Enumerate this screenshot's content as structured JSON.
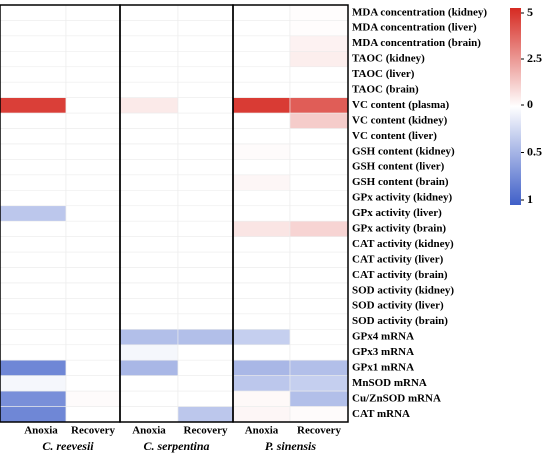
{
  "chart_data": {
    "type": "heatmap",
    "rows": [
      "MDA concentration (kidney)",
      "MDA concentration (liver)",
      "MDA concentration (brain)",
      "TAOC (kidney)",
      "TAOC (liver)",
      "TAOC (brain)",
      "VC content (plasma)",
      "VC content (kidney)",
      "VC content (liver)",
      "GSH content (kidney)",
      "GSH content (liver)",
      "GSH content (brain)",
      "GPx activity (kidney)",
      "GPx activity (liver)",
      "GPx activity (brain)",
      "CAT activity (kidney)",
      "CAT activity (liver)",
      "CAT activity (brain)",
      "SOD activity (kidney)",
      "SOD activity (liver)",
      "SOD activity (brain)",
      "GPx4 mRNA",
      "GPx3 mRNA",
      "GPx1 mRNA",
      "MnSOD mRNA",
      "Cu/ZnSOD mRNA",
      "CAT mRNA"
    ],
    "columns": [
      "Anoxia",
      "Recovery",
      "Anoxia",
      "Recovery",
      "Anoxia",
      "Recovery"
    ],
    "groups": [
      "C. reevesii",
      "C. serpentina",
      "P. sinensis"
    ],
    "values": [
      [
        0,
        0,
        0,
        0,
        0,
        0.05
      ],
      [
        0,
        0,
        0,
        0,
        0,
        0.05
      ],
      [
        0,
        0,
        0,
        0,
        0,
        0.3
      ],
      [
        0,
        0,
        0,
        0,
        0,
        0.4
      ],
      [
        0,
        0,
        0,
        0,
        0,
        0
      ],
      [
        0,
        0,
        0,
        0,
        0,
        0
      ],
      [
        4.5,
        0,
        0.5,
        0,
        4.6,
        3.8
      ],
      [
        0,
        0,
        0,
        0,
        0,
        1.2
      ],
      [
        0,
        0,
        0,
        0,
        0,
        0
      ],
      [
        0,
        0,
        0,
        0,
        0.1,
        0
      ],
      [
        0,
        0,
        0,
        0,
        0,
        0
      ],
      [
        0,
        0,
        0,
        0,
        0.2,
        0
      ],
      [
        0,
        0,
        0,
        0,
        0,
        0
      ],
      [
        -0.35,
        0,
        0,
        0,
        0,
        0
      ],
      [
        0,
        0,
        0,
        0,
        0.6,
        1.0
      ],
      [
        0,
        0,
        0,
        0,
        0,
        0
      ],
      [
        0,
        0,
        0,
        0,
        0,
        0
      ],
      [
        0,
        0,
        0,
        0,
        0,
        0
      ],
      [
        0,
        0,
        0,
        0,
        0,
        0
      ],
      [
        0,
        0,
        0,
        0,
        0,
        0
      ],
      [
        0,
        0,
        0,
        0,
        0,
        0
      ],
      [
        0,
        0,
        -0.4,
        -0.4,
        -0.3,
        0
      ],
      [
        0,
        0,
        -0.05,
        0,
        0,
        0
      ],
      [
        -0.75,
        0,
        -0.45,
        0,
        -0.45,
        -0.4
      ],
      [
        -0.05,
        0,
        0,
        0,
        -0.35,
        -0.3
      ],
      [
        -0.7,
        0.1,
        0,
        0,
        0.15,
        -0.4
      ],
      [
        -0.75,
        0,
        0,
        -0.35,
        0.2,
        0.1
      ]
    ],
    "zlim": [
      -1,
      5
    ],
    "zticks": [
      5,
      2.5,
      0,
      {
        "value": -0.5,
        "label": "0.5"
      },
      {
        "value": -1,
        "label": "1"
      }
    ],
    "colors": {
      "low": "#3f5fc8",
      "mid": "#ffffff",
      "high": "#d62a22"
    }
  }
}
